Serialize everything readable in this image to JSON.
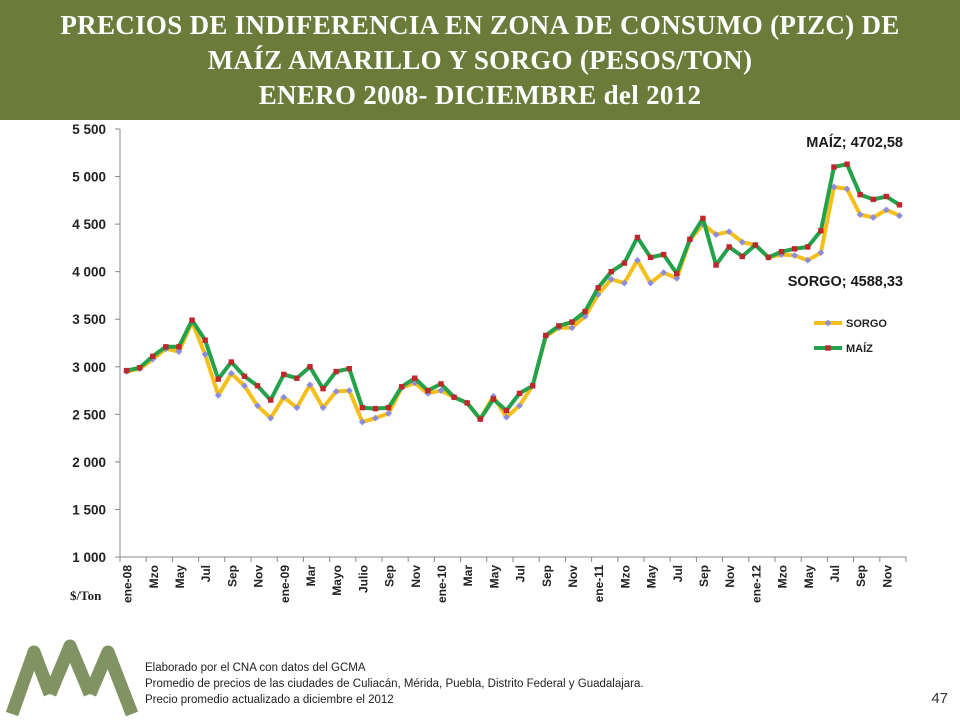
{
  "title": {
    "line1": "PRECIOS DE INDIFERENCIA EN ZONA DE CONSUMO (PIZC) DE",
    "line2": "MAÍZ AMARILLO Y SORGO (PESOS/TON)",
    "line3": "ENERO 2008- DICIEMBRE del 2012"
  },
  "footer": {
    "line1": "Elaborado por el CNA con datos del GCMA",
    "line2": "Promedio de precios de las ciudades de Culiacán, Mérida, Puebla, Distrito Federal y Guadalajara.",
    "line3": "Precio promedio actualizado a diciembre el 2012"
  },
  "page_number": "47",
  "colors": {
    "header": "#6b7b3a",
    "sorgo_line": "#f5bf1a",
    "maiz_line": "#22a24a",
    "sorgo_marker": "#8c8ce0",
    "maiz_marker": "#c0272d",
    "logo": "#7f9462"
  },
  "chart_data": {
    "type": "line",
    "ylabel": "$/Ton",
    "ylim": [
      1000,
      5500
    ],
    "ytick_step": 500,
    "yticks": [
      "1 000",
      "1 500",
      "2 000",
      "2 500",
      "3 000",
      "3 500",
      "4 000",
      "4 500",
      "5 000",
      "5 500"
    ],
    "grid": false,
    "legend": "right",
    "x_tick_labels": [
      "ene-08",
      "Mzo",
      "May",
      "Jul",
      "Sep",
      "Nov",
      "ene-09",
      "Mar",
      "Mayo",
      "Julio",
      "Sep",
      "Nov",
      "ene-10",
      "Mar",
      "May",
      "Jul",
      "Sep",
      "Nov",
      "ene-11",
      "Mzo",
      "May",
      "Jul",
      "Sep",
      "Nov",
      "ene-12",
      "Mzo",
      "May",
      "Jul",
      "Sep",
      "Nov"
    ],
    "series": [
      {
        "name": "SORGO",
        "values": [
          2950,
          2980,
          3080,
          3190,
          3160,
          3470,
          3130,
          2700,
          2930,
          2800,
          2590,
          2460,
          2680,
          2570,
          2810,
          2570,
          2740,
          2750,
          2420,
          2460,
          2510,
          2780,
          2830,
          2720,
          2750,
          2680,
          2620,
          2450,
          2690,
          2470,
          2590,
          2800,
          3320,
          3410,
          3410,
          3530,
          3760,
          3920,
          3880,
          4120,
          3880,
          3990,
          3930,
          4330,
          4500,
          4390,
          4420,
          4310,
          4280,
          4150,
          4180,
          4170,
          4120,
          4200,
          4890,
          4870,
          4600,
          4570,
          4650,
          4588.33
        ]
      },
      {
        "name": "MAÍZ",
        "values": [
          2960,
          2990,
          3110,
          3210,
          3210,
          3490,
          3280,
          2870,
          3050,
          2900,
          2800,
          2650,
          2920,
          2880,
          3000,
          2770,
          2950,
          2980,
          2570,
          2560,
          2570,
          2790,
          2880,
          2750,
          2820,
          2680,
          2620,
          2450,
          2660,
          2540,
          2720,
          2800,
          3330,
          3430,
          3470,
          3580,
          3830,
          4000,
          4090,
          4360,
          4150,
          4180,
          3980,
          4340,
          4560,
          4070,
          4260,
          4160,
          4280,
          4150,
          4210,
          4240,
          4260,
          4430,
          5100,
          5130,
          4810,
          4760,
          4790,
          4702.58
        ]
      }
    ],
    "annotations": [
      {
        "series": "MAÍZ",
        "text": "MAÍZ; 4702,58"
      },
      {
        "series": "SORGO",
        "text": "SORGO; 4588,33"
      }
    ]
  }
}
